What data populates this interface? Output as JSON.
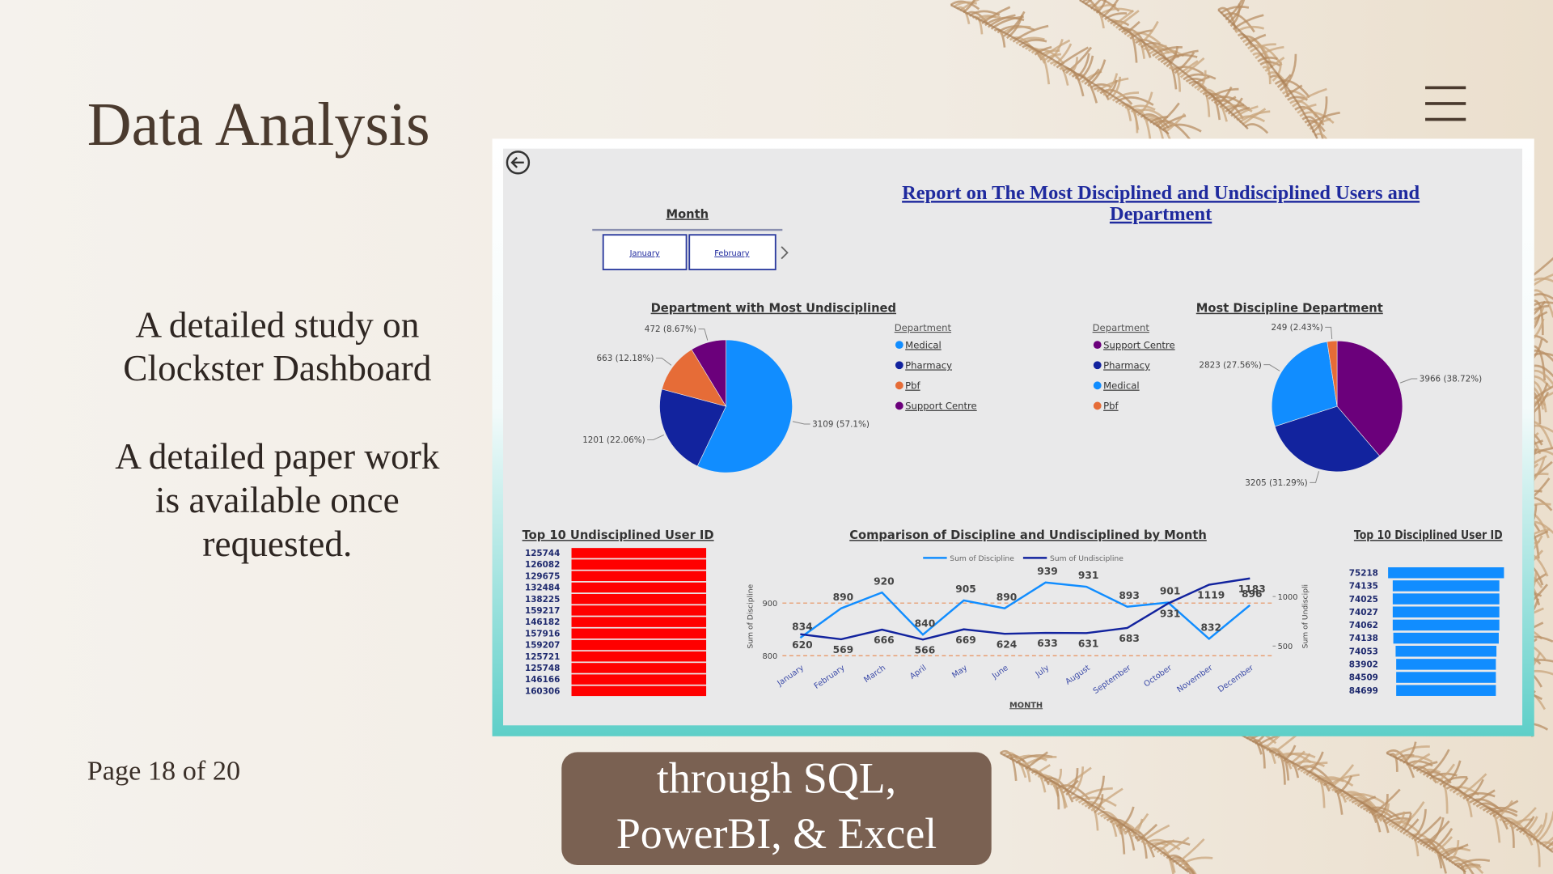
{
  "slide": {
    "title": "Data Analysis",
    "description": [
      [
        "A detailed study on",
        "Clockster Dashboard"
      ],
      [
        "A detailed paper work",
        "is available once",
        "requested."
      ]
    ],
    "page": "Page 18 of 20",
    "button": [
      "through SQL,",
      "PowerBI, & Excel"
    ]
  },
  "dashboard": {
    "title": [
      "Report on The Most Disciplined and Undisciplined Users and",
      "Department"
    ],
    "slicer": {
      "title": "Month",
      "options": [
        "January",
        "February"
      ]
    }
  },
  "chart_data": [
    {
      "type": "pie",
      "title": "Department with Most Undisciplined",
      "legend_title": "Department",
      "categories": [
        "Medical",
        "Pharmacy",
        "Pbf",
        "Support Centre"
      ],
      "values": [
        3109,
        1201,
        663,
        472
      ],
      "value_labels": [
        "3109 (57.1%)",
        "1201 (22.06%)",
        "663 (12.18%)",
        "472 (8.67%)"
      ],
      "colors": [
        "#118dff",
        "#12239e",
        "#e66c37",
        "#6b007b"
      ]
    },
    {
      "type": "pie",
      "title": "Most Discipline Department",
      "legend_title": "Department",
      "categories": [
        "Support Centre",
        "Pharmacy",
        "Medical",
        "Pbf"
      ],
      "values": [
        3966,
        3205,
        2823,
        249
      ],
      "value_labels": [
        "3966 (38.72%)",
        "3205 (31.29%)",
        "2823 (27.56%)",
        "249 (2.43%)"
      ],
      "colors": [
        "#6b007b",
        "#12239e",
        "#118dff",
        "#e66c37"
      ]
    },
    {
      "type": "line",
      "title": "Comparison of Discipline and Undisciplined by Month",
      "x_label": "MONTH",
      "y_label": "Sum of Discipline",
      "y2_label": "Sum of Undiscipli",
      "categories": [
        "January",
        "February",
        "March",
        "April",
        "May",
        "June",
        "July",
        "August",
        "September",
        "October",
        "November",
        "December"
      ],
      "series": [
        {
          "name": "Sum of Discipline",
          "color": "#118dff",
          "values": [
            834,
            890,
            920,
            840,
            905,
            890,
            939,
            931,
            893,
            901,
            832,
            896
          ]
        },
        {
          "name": "Sum of Undiscipline",
          "color": "#12239e",
          "axis": "y2",
          "values": [
            620,
            569,
            666,
            566,
            669,
            624,
            633,
            631,
            683,
            931,
            1119,
            1183
          ]
        }
      ],
      "ylim": [
        790,
        950
      ],
      "yticks": [
        800,
        900
      ],
      "y2lim": [
        350,
        1200
      ],
      "y2ticks": [
        500,
        1000
      ],
      "grid": true
    },
    {
      "type": "bar",
      "orientation": "horizontal",
      "title": "Top 10 Undisciplined User ID",
      "categories": [
        "125744",
        "126082",
        "129675",
        "132484",
        "138225",
        "159217",
        "146182",
        "157916",
        "159207",
        "125721",
        "125748",
        "146166",
        "160306"
      ],
      "values": [
        1,
        1,
        1,
        1,
        1,
        1,
        1,
        1,
        1,
        1,
        1,
        1,
        1
      ],
      "color": "#ff0000",
      "xlim": [
        0,
        1
      ]
    },
    {
      "type": "funnel",
      "title": "Top 10 Disciplined User ID",
      "categories": [
        "75218",
        "74135",
        "74025",
        "74027",
        "74062",
        "74138",
        "74053",
        "83902",
        "84509",
        "84699"
      ],
      "values": [
        1,
        0.92,
        0.92,
        0.92,
        0.92,
        0.91,
        0.87,
        0.86,
        0.86,
        0.86
      ],
      "color": "#118dff",
      "xlim": [
        0,
        1
      ]
    }
  ]
}
